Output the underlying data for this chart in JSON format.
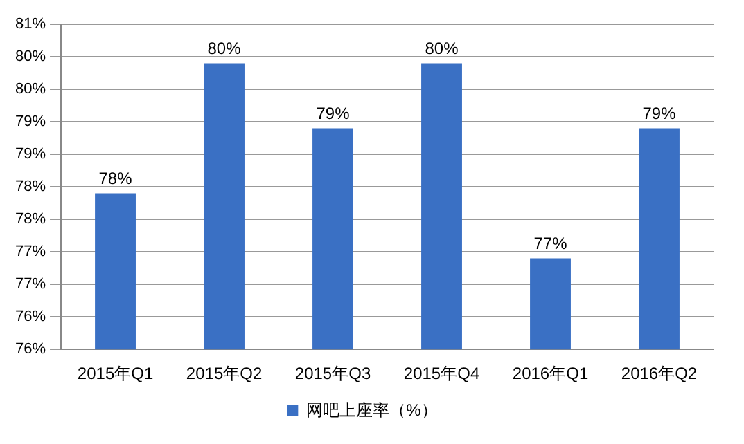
{
  "chart_data": {
    "type": "bar",
    "categories": [
      "2015年Q1",
      "2015年Q2",
      "2015年Q3",
      "2015年Q4",
      "2016年Q1",
      "2016年Q2"
    ],
    "series": [
      {
        "name": "网吧上座率（%）",
        "color": "#3a70c4",
        "values": [
          78.4,
          80.4,
          79.4,
          80.4,
          77.4,
          79.4
        ],
        "value_labels": [
          "78%",
          "80%",
          "79%",
          "80%",
          "77%",
          "79%"
        ]
      }
    ],
    "ylim": [
      76,
      81
    ],
    "yticks": [
      {
        "value": 76,
        "label": "76%"
      },
      {
        "value": 76.5,
        "label": "76%"
      },
      {
        "value": 77,
        "label": "77%"
      },
      {
        "value": 77.5,
        "label": "77%"
      },
      {
        "value": 78,
        "label": "78%"
      },
      {
        "value": 78.5,
        "label": "78%"
      },
      {
        "value": 79,
        "label": "79%"
      },
      {
        "value": 79.5,
        "label": "79%"
      },
      {
        "value": 80,
        "label": "80%"
      },
      {
        "value": 80.5,
        "label": "80%"
      },
      {
        "value": 81,
        "label": "81%"
      }
    ],
    "grid": "y",
    "legend": "bottom"
  }
}
